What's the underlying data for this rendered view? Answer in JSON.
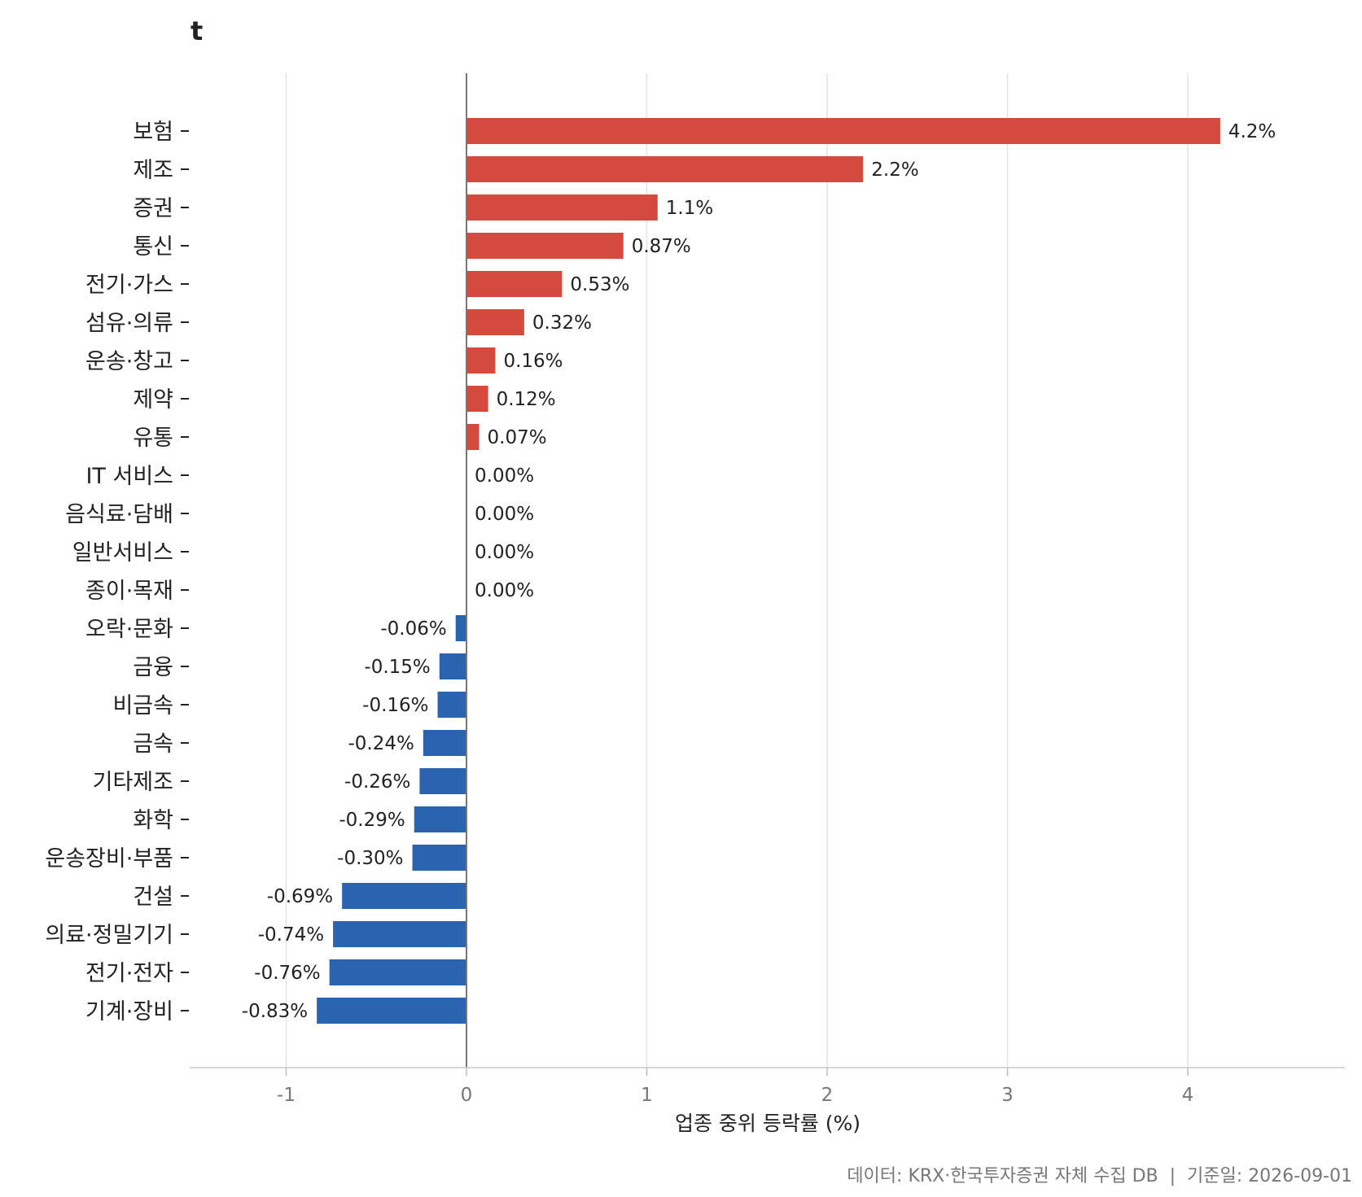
{
  "chart_data": {
    "type": "bar",
    "orientation": "horizontal",
    "title": "t",
    "xlabel": "업종 중위 등락률 (%)",
    "ylabel": "",
    "caption": "데이터: KRX·한국투자증권 자체 수집 DB  |  기준일: 2026-09-01",
    "xlim": [
      -1.5,
      4.9
    ],
    "xticks": [
      -1,
      0,
      1,
      2,
      3,
      4
    ],
    "grid": "vertical",
    "legend": "none",
    "colors": {
      "positive": "#d44a3f",
      "negative": "#2a63b0",
      "zero_line": "#777777",
      "grid": "#e3e3e3"
    },
    "categories": [
      "보험",
      "제조",
      "증권",
      "통신",
      "전기·가스",
      "섬유·의류",
      "운송·창고",
      "제약",
      "유통",
      "IT 서비스",
      "음식료·담배",
      "일반서비스",
      "종이·목재",
      "오락·문화",
      "금융",
      "비금속",
      "금속",
      "기타제조",
      "화학",
      "운송장비·부품",
      "건설",
      "의료·정밀기기",
      "전기·전자",
      "기계·장비"
    ],
    "values": [
      4.18,
      2.2,
      1.06,
      0.87,
      0.53,
      0.32,
      0.16,
      0.12,
      0.07,
      0.0,
      0.0,
      0.0,
      0.0,
      -0.06,
      -0.15,
      -0.16,
      -0.24,
      -0.26,
      -0.29,
      -0.3,
      -0.69,
      -0.74,
      -0.76,
      -0.83
    ],
    "value_labels": [
      "4.2%",
      "2.2%",
      "1.1%",
      "0.87%",
      "0.53%",
      "0.32%",
      "0.16%",
      "0.12%",
      "0.07%",
      "0.00%",
      "0.00%",
      "0.00%",
      "0.00%",
      "-0.06%",
      "-0.15%",
      "-0.16%",
      "-0.24%",
      "-0.26%",
      "-0.29%",
      "-0.30%",
      "-0.69%",
      "-0.74%",
      "-0.76%",
      "-0.83%"
    ]
  }
}
